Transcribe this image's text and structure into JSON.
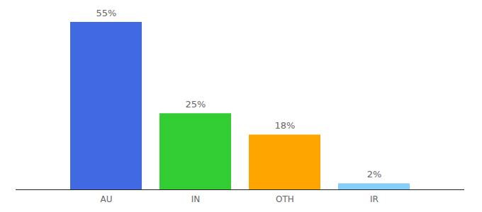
{
  "chart_data": {
    "type": "bar",
    "categories": [
      "AU",
      "IN",
      "OTH",
      "IR"
    ],
    "values": [
      55,
      25,
      18,
      2
    ],
    "value_labels": [
      "55%",
      "25%",
      "18%",
      "2%"
    ],
    "colors": [
      "#4169e1",
      "#32cd32",
      "#ffa500",
      "#87cefa"
    ],
    "ylim": [
      0,
      55
    ],
    "data_labels": true,
    "tick_labels": "x",
    "grid": false
  }
}
